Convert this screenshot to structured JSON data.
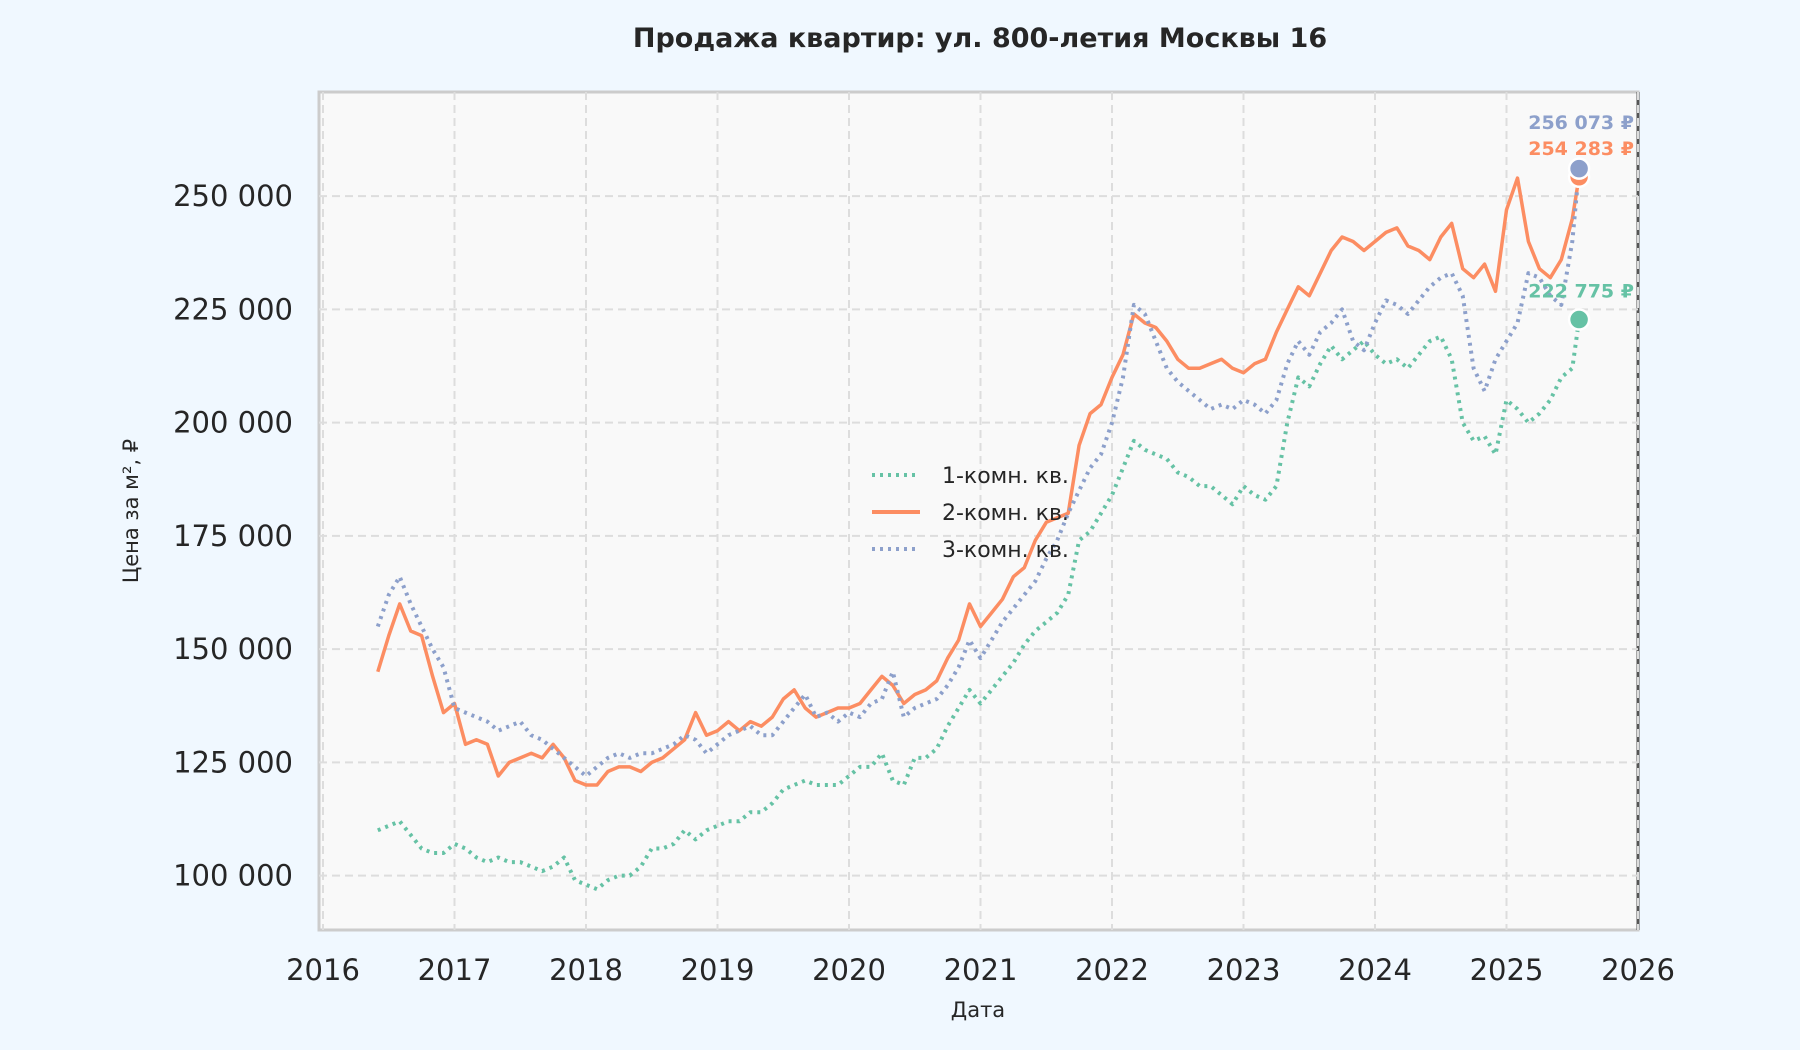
{
  "chart_data": {
    "type": "line",
    "title": "Продажа квартир: ул. 800-летия Москвы 16",
    "xlabel": "Дата",
    "ylabel": "Цена за м², ₽",
    "xlim": [
      "2016",
      "2026"
    ],
    "ylim": [
      88000,
      273000
    ],
    "x_ticks": [
      "2016",
      "2017",
      "2018",
      "2019",
      "2020",
      "2021",
      "2022",
      "2023",
      "2024",
      "2025",
      "2026"
    ],
    "y_ticks": [
      100000,
      125000,
      150000,
      175000,
      200000,
      225000,
      250000
    ],
    "y_tick_labels": [
      "100 000",
      "125 000",
      "150 000",
      "175 000",
      "200 000",
      "225 000",
      "250 000"
    ],
    "grid": true,
    "legend_position": "center",
    "series": [
      {
        "name": "1-комн. кв.",
        "color": "#66c2a5",
        "style": "dotted",
        "last_label": "222 775 ₽",
        "last_value": 222775,
        "last_date": "2025-07-20",
        "x": [
          "2016-06",
          "2016-07",
          "2016-08",
          "2016-09",
          "2016-10",
          "2016-11",
          "2016-12",
          "2017-01",
          "2017-02",
          "2017-03",
          "2017-04",
          "2017-05",
          "2017-06",
          "2017-07",
          "2017-08",
          "2017-09",
          "2017-10",
          "2017-11",
          "2017-12",
          "2018-01",
          "2018-02",
          "2018-03",
          "2018-04",
          "2018-05",
          "2018-06",
          "2018-07",
          "2018-08",
          "2018-09",
          "2018-10",
          "2018-11",
          "2018-12",
          "2019-01",
          "2019-02",
          "2019-03",
          "2019-04",
          "2019-05",
          "2019-06",
          "2019-07",
          "2019-08",
          "2019-09",
          "2019-10",
          "2019-11",
          "2019-12",
          "2020-01",
          "2020-02",
          "2020-03",
          "2020-04",
          "2020-05",
          "2020-06",
          "2020-07",
          "2020-08",
          "2020-09",
          "2020-10",
          "2020-11",
          "2020-12",
          "2021-01",
          "2021-02",
          "2021-03",
          "2021-04",
          "2021-05",
          "2021-06",
          "2021-07",
          "2021-08",
          "2021-09",
          "2021-10",
          "2021-11",
          "2021-12",
          "2022-01",
          "2022-02",
          "2022-03",
          "2022-04",
          "2022-05",
          "2022-06",
          "2022-07",
          "2022-08",
          "2022-09",
          "2022-10",
          "2022-11",
          "2022-12",
          "2023-01",
          "2023-02",
          "2023-03",
          "2023-04",
          "2023-05",
          "2023-06",
          "2023-07",
          "2023-08",
          "2023-09",
          "2023-10",
          "2023-11",
          "2023-12",
          "2024-01",
          "2024-02",
          "2024-03",
          "2024-04",
          "2024-05",
          "2024-06",
          "2024-07",
          "2024-08",
          "2024-09",
          "2024-10",
          "2024-11",
          "2024-12",
          "2025-01",
          "2025-02",
          "2025-03",
          "2025-04",
          "2025-05",
          "2025-06",
          "2025-07",
          "2025-07-20"
        ],
        "y": [
          110000,
          111000,
          112000,
          109000,
          106000,
          105000,
          105000,
          107000,
          106000,
          104000,
          103000,
          104000,
          103000,
          103000,
          102000,
          101000,
          102000,
          104000,
          99000,
          98000,
          97000,
          99000,
          100000,
          100000,
          102000,
          106000,
          106000,
          107000,
          110000,
          108000,
          110000,
          111000,
          112000,
          112000,
          114000,
          114000,
          116000,
          119000,
          120000,
          121000,
          120000,
          120000,
          120000,
          122000,
          124000,
          124000,
          127000,
          121000,
          120000,
          126000,
          126000,
          128000,
          133000,
          137000,
          141000,
          138000,
          141000,
          144000,
          147000,
          151000,
          154000,
          156000,
          158000,
          162000,
          174000,
          176000,
          180000,
          184000,
          190000,
          196000,
          194000,
          193000,
          192000,
          189000,
          188000,
          186000,
          186000,
          184000,
          182000,
          186000,
          184000,
          183000,
          186000,
          200000,
          210000,
          208000,
          213000,
          217000,
          214000,
          216000,
          218000,
          215000,
          213000,
          214000,
          212000,
          215000,
          218000,
          219000,
          214000,
          200000,
          196000,
          197000,
          193000,
          205000,
          203000,
          200000,
          202000,
          205000,
          210000,
          212000,
          222775
        ]
      },
      {
        "name": "2-комн. кв.",
        "color": "#fc8d62",
        "style": "solid",
        "last_label": "254 283 ₽",
        "last_value": 254283,
        "last_date": "2025-07-20",
        "x": [
          "2016-06",
          "2016-07",
          "2016-08",
          "2016-09",
          "2016-10",
          "2016-11",
          "2016-12",
          "2017-01",
          "2017-02",
          "2017-03",
          "2017-04",
          "2017-05",
          "2017-06",
          "2017-07",
          "2017-08",
          "2017-09",
          "2017-10",
          "2017-11",
          "2017-12",
          "2018-01",
          "2018-02",
          "2018-03",
          "2018-04",
          "2018-05",
          "2018-06",
          "2018-07",
          "2018-08",
          "2018-09",
          "2018-10",
          "2018-11",
          "2018-12",
          "2019-01",
          "2019-02",
          "2019-03",
          "2019-04",
          "2019-05",
          "2019-06",
          "2019-07",
          "2019-08",
          "2019-09",
          "2019-10",
          "2019-11",
          "2019-12",
          "2020-01",
          "2020-02",
          "2020-03",
          "2020-04",
          "2020-05",
          "2020-06",
          "2020-07",
          "2020-08",
          "2020-09",
          "2020-10",
          "2020-11",
          "2020-12",
          "2021-01",
          "2021-02",
          "2021-03",
          "2021-04",
          "2021-05",
          "2021-06",
          "2021-07",
          "2021-08",
          "2021-09",
          "2021-10",
          "2021-11",
          "2021-12",
          "2022-01",
          "2022-02",
          "2022-03",
          "2022-04",
          "2022-05",
          "2022-06",
          "2022-07",
          "2022-08",
          "2022-09",
          "2022-10",
          "2022-11",
          "2022-12",
          "2023-01",
          "2023-02",
          "2023-03",
          "2023-04",
          "2023-05",
          "2023-06",
          "2023-07",
          "2023-08",
          "2023-09",
          "2023-10",
          "2023-11",
          "2023-12",
          "2024-01",
          "2024-02",
          "2024-03",
          "2024-04",
          "2024-05",
          "2024-06",
          "2024-07",
          "2024-08",
          "2024-09",
          "2024-10",
          "2024-11",
          "2024-12",
          "2025-01",
          "2025-02",
          "2025-03",
          "2025-04",
          "2025-05",
          "2025-06",
          "2025-07",
          "2025-07-20"
        ],
        "y": [
          145000,
          153000,
          160000,
          154000,
          153000,
          144000,
          136000,
          138000,
          129000,
          130000,
          129000,
          122000,
          125000,
          126000,
          127000,
          126000,
          129000,
          126000,
          121000,
          120000,
          120000,
          123000,
          124000,
          124000,
          123000,
          125000,
          126000,
          128000,
          130000,
          136000,
          131000,
          132000,
          134000,
          132000,
          134000,
          133000,
          135000,
          139000,
          141000,
          137000,
          135000,
          136000,
          137000,
          137000,
          138000,
          141000,
          144000,
          142000,
          138000,
          140000,
          141000,
          143000,
          148000,
          152000,
          160000,
          155000,
          158000,
          161000,
          166000,
          168000,
          174000,
          178000,
          179000,
          180000,
          195000,
          202000,
          204000,
          210000,
          215000,
          224000,
          222000,
          221000,
          218000,
          214000,
          212000,
          212000,
          213000,
          214000,
          212000,
          211000,
          213000,
          214000,
          220000,
          225000,
          230000,
          228000,
          233000,
          238000,
          241000,
          240000,
          238000,
          240000,
          242000,
          243000,
          239000,
          238000,
          236000,
          241000,
          244000,
          234000,
          232000,
          235000,
          229000,
          247000,
          254000,
          240000,
          234000,
          232000,
          236000,
          245000,
          254283
        ]
      },
      {
        "name": "3-комн. кв.",
        "color": "#8da0cb",
        "style": "dotted",
        "last_label": "256 073 ₽",
        "last_value": 256073,
        "last_date": "2025-07-20",
        "x": [
          "2016-06",
          "2016-07",
          "2016-08",
          "2016-09",
          "2016-10",
          "2016-11",
          "2016-12",
          "2017-01",
          "2017-02",
          "2017-03",
          "2017-04",
          "2017-05",
          "2017-06",
          "2017-07",
          "2017-08",
          "2017-09",
          "2017-10",
          "2017-11",
          "2017-12",
          "2018-01",
          "2018-02",
          "2018-03",
          "2018-04",
          "2018-05",
          "2018-06",
          "2018-07",
          "2018-08",
          "2018-09",
          "2018-10",
          "2018-11",
          "2018-12",
          "2019-01",
          "2019-02",
          "2019-03",
          "2019-04",
          "2019-05",
          "2019-06",
          "2019-07",
          "2019-08",
          "2019-09",
          "2019-10",
          "2019-11",
          "2019-12",
          "2020-01",
          "2020-02",
          "2020-03",
          "2020-04",
          "2020-05",
          "2020-06",
          "2020-07",
          "2020-08",
          "2020-09",
          "2020-10",
          "2020-11",
          "2020-12",
          "2021-01",
          "2021-02",
          "2021-03",
          "2021-04",
          "2021-05",
          "2021-06",
          "2021-07",
          "2021-08",
          "2021-09",
          "2021-10",
          "2021-11",
          "2021-12",
          "2022-01",
          "2022-02",
          "2022-03",
          "2022-04",
          "2022-05",
          "2022-06",
          "2022-07",
          "2022-08",
          "2022-09",
          "2022-10",
          "2022-11",
          "2022-12",
          "2023-01",
          "2023-02",
          "2023-03",
          "2023-04",
          "2023-05",
          "2023-06",
          "2023-07",
          "2023-08",
          "2023-09",
          "2023-10",
          "2023-11",
          "2023-12",
          "2024-01",
          "2024-02",
          "2024-03",
          "2024-04",
          "2024-05",
          "2024-06",
          "2024-07",
          "2024-08",
          "2024-09",
          "2024-10",
          "2024-11",
          "2024-12",
          "2025-01",
          "2025-02",
          "2025-03",
          "2025-04",
          "2025-05",
          "2025-06",
          "2025-07",
          "2025-07-20"
        ],
        "y": [
          155000,
          162000,
          166000,
          160000,
          155000,
          150000,
          146000,
          137000,
          136000,
          135000,
          134000,
          132000,
          133000,
          134000,
          131000,
          130000,
          128000,
          126000,
          124000,
          122000,
          124000,
          126000,
          127000,
          126000,
          127000,
          127000,
          128000,
          129000,
          131000,
          130000,
          127000,
          129000,
          131000,
          132000,
          133000,
          131000,
          131000,
          134000,
          137000,
          140000,
          135000,
          136000,
          134000,
          136000,
          135000,
          138000,
          139000,
          145000,
          135000,
          137000,
          138000,
          139000,
          142000,
          146000,
          152000,
          148000,
          152000,
          156000,
          159000,
          162000,
          165000,
          170000,
          174000,
          180000,
          185000,
          190000,
          193000,
          200000,
          210000,
          226000,
          224000,
          218000,
          212000,
          209000,
          207000,
          205000,
          203000,
          204000,
          203000,
          205000,
          204000,
          202000,
          205000,
          213000,
          218000,
          215000,
          220000,
          222000,
          225000,
          218000,
          216000,
          222000,
          227000,
          226000,
          224000,
          227000,
          230000,
          232000,
          233000,
          228000,
          212000,
          207000,
          214000,
          218000,
          222000,
          233000,
          232000,
          228000,
          226000,
          240000,
          256073
        ]
      }
    ]
  }
}
